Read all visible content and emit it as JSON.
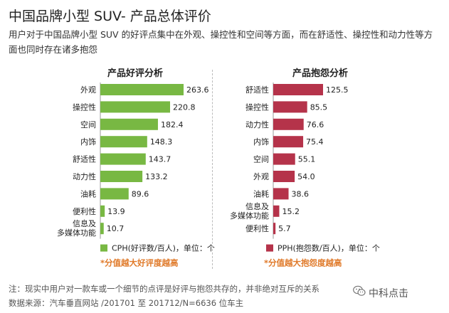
{
  "title": "中国品牌小型 SUV- 产品总体评价",
  "subtitle": "用户对于中国品牌小型 SUV 的好评点集中在外观、操控性和空间等方面，而在舒适性、操控性和动力性等方面也同时存在诸多抱怨",
  "chart_data": [
    {
      "type": "bar",
      "orientation": "horizontal",
      "title": "产品好评分析",
      "categories": [
        "外观",
        "操控性",
        "空间",
        "内饰",
        "舒适性",
        "动力性",
        "油耗",
        "便利性",
        "信息及\n多媒体功能"
      ],
      "values": [
        263.6,
        220.8,
        182.4,
        148.3,
        143.7,
        133.2,
        89.6,
        13.9,
        10.7
      ],
      "value_labels": [
        "263.6",
        "220.8",
        "182.4",
        "148.3",
        "143.7",
        "133.2",
        "89.6",
        "13.9",
        "10.7"
      ],
      "xlim": [
        0,
        263.6
      ],
      "color": "#78b843",
      "legend": "CPH(好评数/百人)，单位：个",
      "annotation": "*分值越大好评度越高"
    },
    {
      "type": "bar",
      "orientation": "horizontal",
      "title": "产品抱怨分析",
      "categories": [
        "舒适性",
        "操控性",
        "动力性",
        "内饰",
        "空间",
        "外观",
        "油耗",
        "信息及\n多媒体功能",
        "便利性"
      ],
      "values": [
        125.5,
        85.5,
        76.6,
        75.4,
        55.1,
        54.0,
        38.6,
        15.2,
        5.7
      ],
      "value_labels": [
        "125.5",
        "85.5",
        "76.6",
        "75.4",
        "55.1",
        "54.0",
        "38.6",
        "15.2",
        "5.7"
      ],
      "xlim": [
        0,
        125.5
      ],
      "color": "#b5334a",
      "legend": "PPH(抱怨数/百人)，单位：个",
      "annotation": "*分值越大抱怨度越高"
    }
  ],
  "note": "注：现实中用户对一款车或一个细节的点评是好评与抱怨共存的，并非绝对互斥的关系",
  "source": "数据来源：汽车垂直网站 /201701 至 201712/N=6636 位车主",
  "brand": "中科点击",
  "colors": {
    "annotation": "#e07a2a",
    "axis": "#999999"
  }
}
